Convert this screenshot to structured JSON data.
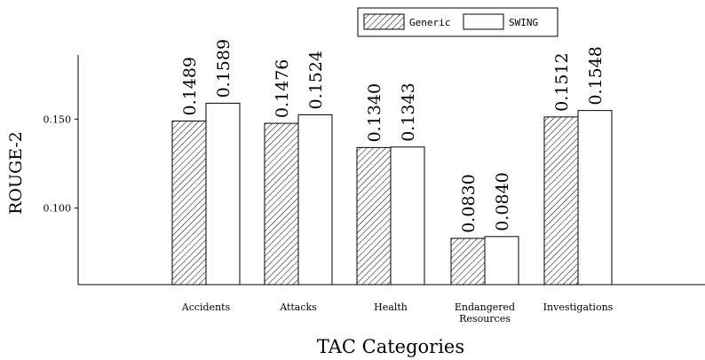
{
  "chart_data": {
    "type": "bar",
    "xlabel": "TAC Categories",
    "ylabel": "ROUGE-2",
    "categories": [
      "Accidents",
      "Attacks",
      "Health",
      "Endangered Resources",
      "Investigations"
    ],
    "category_lines": [
      [
        "Accidents"
      ],
      [
        "Attacks"
      ],
      [
        "Health"
      ],
      [
        "Endangered",
        "Resources"
      ],
      [
        "Investigations"
      ]
    ],
    "series": [
      {
        "name": "Generic",
        "values": [
          0.1489,
          0.1476,
          0.134,
          0.083,
          0.1512
        ],
        "value_labels": [
          "0.1489",
          "0.1476",
          "0.1340",
          "0.0830",
          "0.1512"
        ],
        "pattern": "hatch"
      },
      {
        "name": "SWING",
        "values": [
          0.1589,
          0.1524,
          0.1343,
          0.084,
          0.1548
        ],
        "value_labels": [
          "0.1589",
          "0.1524",
          "0.1343",
          "0.0840",
          "0.1548"
        ],
        "pattern": "solid-white"
      }
    ],
    "y_ticks": [
      0.1,
      0.15
    ],
    "y_tick_labels": [
      "0.100",
      "0.150"
    ],
    "ylim": [
      0.057,
      0.186
    ],
    "grid": false,
    "legend_position": "top-center",
    "colors": {
      "stroke": "#000000",
      "fill": "#ffffff"
    }
  }
}
